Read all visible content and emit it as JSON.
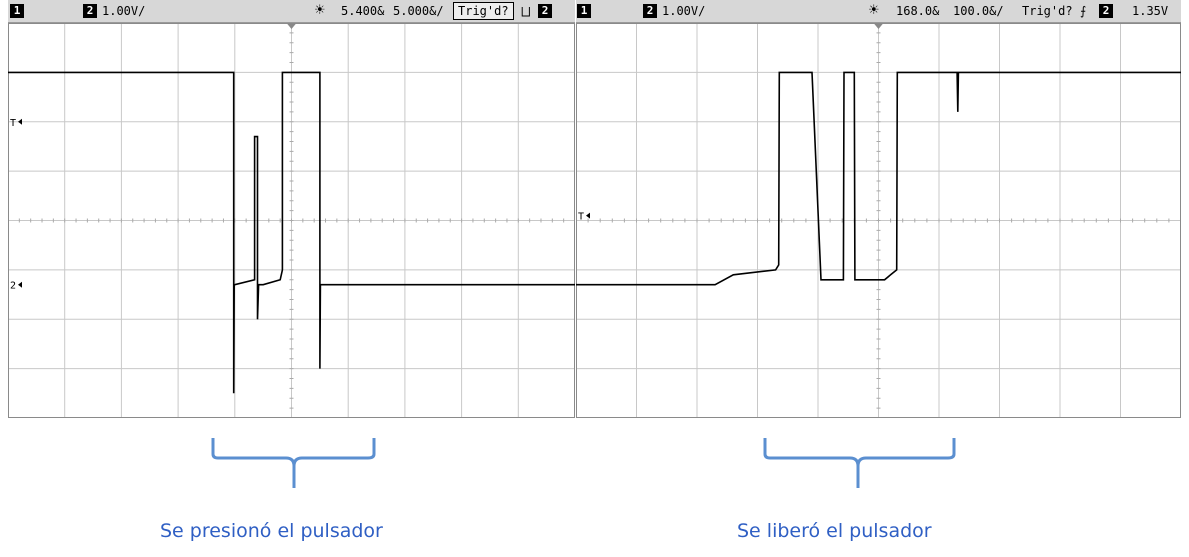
{
  "left_scope": {
    "ch1_badge": "1",
    "ch2_badge": "2",
    "ch2_scale": "1.00V/",
    "delay": "5.400&",
    "timebase": "5.000&/",
    "trigger_status": "Trig'd?",
    "slope_symbol": "⨆",
    "trigger_channel": "2",
    "marker_T": "T",
    "marker_ch2": "2"
  },
  "right_scope": {
    "ch1_badge": "1",
    "ch2_badge": "2",
    "ch2_scale": "1.00V/",
    "delay": "168.0&",
    "timebase": "100.0&/",
    "trigger_status": "Trig'd?",
    "slope_symbol": "⨍",
    "trigger_channel": "2",
    "trigger_level": "1.35V",
    "marker_T": "T"
  },
  "captions": {
    "left": "Se presionó el pulsador",
    "right": "Se liberó el pulsador"
  },
  "colors": {
    "caption": "#2f5fc4",
    "brace": "#5b8fd0",
    "trace": "#000000"
  },
  "chart_data": [
    {
      "type": "line",
      "title": "",
      "xlabel": "",
      "ylabel": "",
      "grid": true,
      "xlim": [
        0,
        10
      ],
      "ylim": [
        -4,
        4
      ],
      "series": [
        {
          "name": "2",
          "x": [
            0,
            3.1,
            3.98,
            3.98,
            3.99,
            4.0,
            4.35,
            4.35,
            4.4,
            4.4,
            4.42,
            4.45,
            4.45,
            4.5,
            4.8,
            4.84,
            4.84,
            4.86,
            4.88,
            5.5,
            5.5,
            5.51,
            5.52,
            10
          ],
          "y": [
            3.0,
            3.0,
            3.0,
            -3.5,
            -1.3,
            -1.3,
            -1.2,
            1.7,
            1.7,
            -2.0,
            -1.3,
            -1.3,
            -1.3,
            -1.3,
            -1.2,
            -1.0,
            3.0,
            3.0,
            3.0,
            3.0,
            -3.0,
            -1.3,
            -1.3,
            -1.3
          ]
        }
      ]
    },
    {
      "type": "line",
      "title": "",
      "xlabel": "",
      "ylabel": "",
      "grid": true,
      "xlim": [
        0,
        10
      ],
      "ylim": [
        -4,
        4
      ],
      "series": [
        {
          "name": "2",
          "x": [
            0,
            2.3,
            2.6,
            3.3,
            3.35,
            3.36,
            3.88,
            3.89,
            3.9,
            4.05,
            4.06,
            4.42,
            4.43,
            4.45,
            4.6,
            4.61,
            4.62,
            5.1,
            5.2,
            5.3,
            5.31,
            5.32,
            6.3,
            6.31,
            6.32,
            10
          ],
          "y": [
            -1.3,
            -1.3,
            -1.1,
            -1.0,
            -0.9,
            3.0,
            3.0,
            3.0,
            3.0,
            -1.2,
            -1.2,
            -1.2,
            3.0,
            3.0,
            3.0,
            -1.2,
            -1.2,
            -1.2,
            -1.1,
            -1.0,
            3.0,
            3.0,
            3.0,
            2.2,
            3.0,
            3.0
          ]
        }
      ]
    }
  ]
}
